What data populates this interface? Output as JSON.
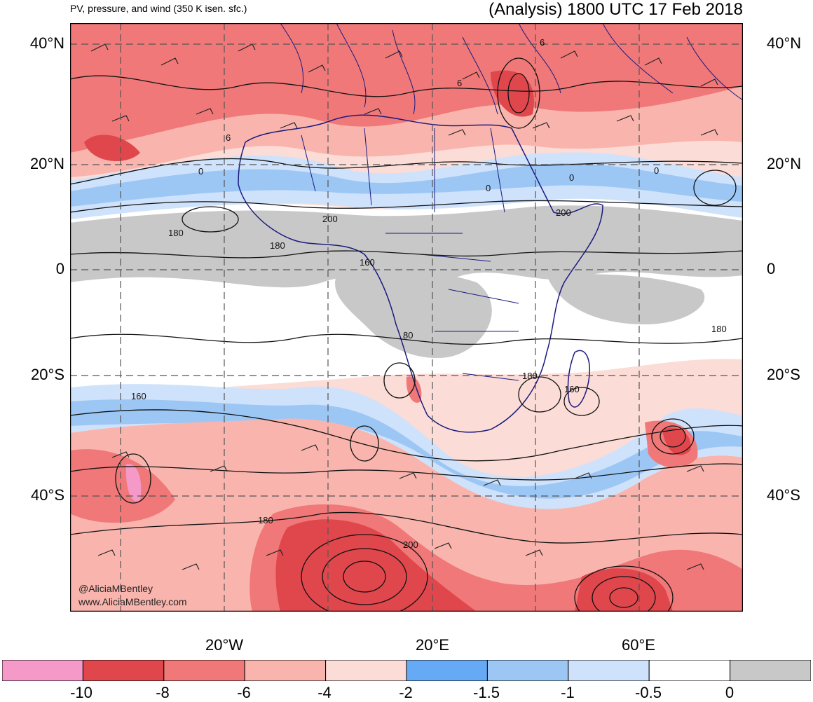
{
  "header": {
    "title_left": "PV, pressure, and wind (350 K isen. sfc.)",
    "title_right": "(Analysis) 1800 UTC 17 Feb 2018"
  },
  "axes": {
    "lat_labels": [
      "40°N",
      "20°N",
      "0",
      "20°S",
      "40°S"
    ],
    "lon_labels": [
      "20°W",
      "20°E",
      "60°E"
    ]
  },
  "contour_labels": [
    "6",
    "6",
    "6",
    "0",
    "0",
    "0",
    "0",
    "180",
    "180",
    "200",
    "200",
    "160",
    "160",
    "160",
    "80",
    "180",
    "180",
    "180",
    "200"
  ],
  "colorbar": {
    "bins": [
      {
        "color": "#f59ac8"
      },
      {
        "color": "#e0474c"
      },
      {
        "color": "#f07878"
      },
      {
        "color": "#f9b5ad"
      },
      {
        "color": "#fbdcd6"
      },
      {
        "color": "#66aaf5"
      },
      {
        "color": "#9cc7f5"
      },
      {
        "color": "#cfe2fb"
      },
      {
        "color": "#ffffff"
      },
      {
        "color": "#c8c8c8"
      }
    ],
    "labels": [
      "-10",
      "-8",
      "-6",
      "-4",
      "-2",
      "-1.5",
      "-1",
      "-0.5",
      "0"
    ]
  },
  "credit": {
    "handle": "@AliciaMBentley",
    "site": "www.AliciaMBentley.com"
  }
}
